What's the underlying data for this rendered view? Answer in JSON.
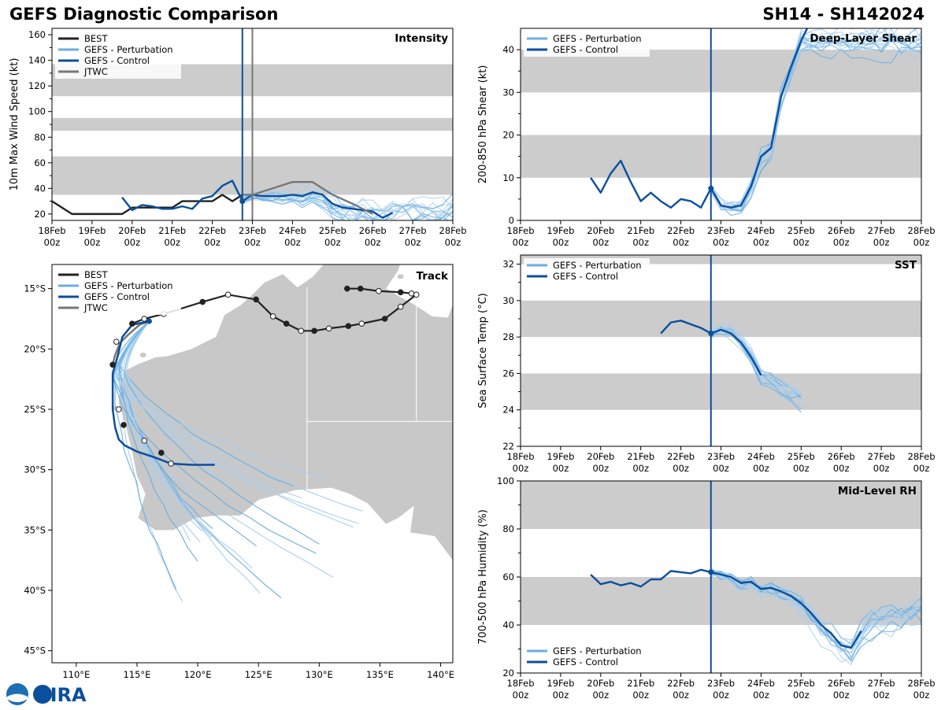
{
  "header": {
    "left": "GEFS Diagnostic Comparison",
    "right": "SH14 - SH142024"
  },
  "colors": {
    "best": "#222222",
    "perturbation": "#6aaedf",
    "perturbation_faint": "#a9cfee",
    "control": "#0b4f9c",
    "jtwc": "#777777",
    "band": "#cccccc",
    "land": "#c8c8c8"
  },
  "legend": {
    "best": "BEST",
    "perturbation": "GEFS - Perturbation",
    "control": "GEFS - Control",
    "jtwc": "JTWC"
  },
  "time_axis": {
    "days": [
      "18Feb",
      "19Feb",
      "20Feb",
      "21Feb",
      "22Feb",
      "23Feb",
      "24Feb",
      "25Feb",
      "26Feb",
      "27Feb",
      "28Feb"
    ],
    "hour": "00z",
    "start_day": 18,
    "end_day": 28
  },
  "init_time_day": 22.75,
  "jtwc_time_day": 23.0,
  "logo_text": "CIRA",
  "chart_data": [
    {
      "id": "intensity",
      "type": "line",
      "title": "Intensity",
      "ylabel": "10m Max Wind Speed (kt)",
      "ylim": [
        15,
        165
      ],
      "yticks": [
        20,
        40,
        60,
        80,
        100,
        120,
        140,
        160
      ],
      "bands": [
        [
          35,
          65
        ],
        [
          85,
          95
        ],
        [
          112,
          137
        ]
      ],
      "series": [
        {
          "name": "BEST",
          "x": [
            18,
            18.5,
            19,
            19.5,
            19.75,
            20,
            20.25,
            20.5,
            20.75,
            21,
            21.25,
            21.5,
            21.75,
            22,
            22.25,
            22.5,
            22.75
          ],
          "values": [
            30,
            20,
            20,
            20,
            20,
            25,
            25,
            25,
            25,
            25,
            30,
            30,
            30,
            30,
            35,
            30,
            35
          ]
        },
        {
          "name": "GEFS - Control",
          "x": [
            19.75,
            20,
            20.25,
            20.5,
            20.75,
            21,
            21.25,
            21.5,
            21.75,
            22,
            22.25,
            22.5,
            22.75,
            23,
            23.25,
            23.5,
            23.75,
            24,
            24.25,
            24.5,
            24.75,
            25,
            25.25,
            25.5,
            25.75,
            26,
            26.25,
            26.5
          ],
          "values": [
            33,
            23,
            27,
            26,
            24,
            24,
            26,
            24,
            32,
            34,
            42,
            46,
            30,
            35,
            34,
            34,
            34,
            35,
            34,
            37,
            35,
            28,
            25,
            24,
            23,
            22,
            17,
            21
          ]
        },
        {
          "name": "JTWC",
          "x": [
            22.75,
            23,
            23.5,
            24,
            24.5,
            25,
            25.5,
            26
          ],
          "values": [
            35,
            35,
            40,
            45,
            45,
            35,
            28,
            20
          ]
        }
      ]
    },
    {
      "id": "track",
      "type": "scatter",
      "title": "Track",
      "xlim": [
        108,
        141
      ],
      "ylim": [
        -46,
        -13
      ],
      "xticks": [
        110,
        115,
        120,
        125,
        130,
        135,
        140
      ],
      "xtick_labels": [
        "110°E",
        "115°E",
        "120°E",
        "125°E",
        "130°E",
        "135°E",
        "140°E"
      ],
      "yticks": [
        -15,
        -20,
        -25,
        -30,
        -35,
        -40,
        -45
      ],
      "ytick_labels": [
        "15°S",
        "20°S",
        "25°S",
        "30°S",
        "35°S",
        "40°S",
        "45°S"
      ],
      "best_track": {
        "lon": [
          132.3,
          133.4,
          134.9,
          136.7,
          137.6,
          138,
          136.7,
          135.4,
          133.5,
          132.4,
          130.8,
          129.6,
          128.5,
          127.3,
          126.2,
          124.8,
          122.5,
          120.4,
          117.2,
          115.6,
          114.6
        ],
        "lat": [
          -15,
          -15,
          -15.2,
          -15.3,
          -15.4,
          -15.5,
          -16.5,
          -17.5,
          -17.9,
          -18.1,
          -18.3,
          -18.5,
          -18.5,
          -17.9,
          -17.3,
          -15.9,
          -15.5,
          -16.1,
          -17.1,
          -17.5,
          -17.9
        ]
      },
      "best_track_filled": [
        true,
        true,
        false,
        true,
        false,
        false,
        false,
        true,
        false,
        true,
        false,
        true,
        false,
        true,
        false,
        true,
        false,
        true,
        false,
        false,
        true
      ],
      "control_track": {
        "lon": [
          116,
          114.6,
          113.8,
          113.3,
          113,
          113,
          113,
          113.2,
          113.5,
          114,
          115,
          116.5,
          117.8,
          119.5,
          121.4
        ],
        "lat": [
          -17.7,
          -18,
          -19,
          -21,
          -22,
          -23.4,
          -25,
          -26.5,
          -27.5,
          -28,
          -28.5,
          -29,
          -29.5,
          -29.6,
          -29.6
        ]
      },
      "control_track_points": {
        "lon": [
          113.3,
          113,
          113.5,
          113.9,
          115.6,
          117,
          117.8
        ],
        "lat": [
          -19.4,
          -21.3,
          -25,
          -26.3,
          -27.6,
          -28.6,
          -29.5
        ]
      },
      "jtwc_track": {
        "lon": [
          116,
          115.2,
          114.3,
          113.6,
          113.2,
          113
        ],
        "lat": [
          -17.7,
          -18,
          -18.8,
          -19.5,
          -20.5,
          -21.3
        ]
      }
    },
    {
      "id": "shear",
      "type": "line",
      "title": "Deep-Layer Shear",
      "ylabel": "200-850 hPa Shear (kt)",
      "ylim": [
        0,
        45
      ],
      "yticks": [
        0,
        10,
        20,
        30,
        40
      ],
      "bands": [
        [
          10,
          20
        ],
        [
          30,
          40
        ]
      ],
      "series": [
        {
          "name": "GEFS - Control",
          "x": [
            19.75,
            20,
            20.25,
            20.5,
            20.75,
            21,
            21.25,
            21.5,
            21.75,
            22,
            22.25,
            22.5,
            22.75,
            23,
            23.25,
            23.5,
            23.75,
            24,
            24.25,
            24.5,
            24.75,
            25,
            25.15
          ],
          "values": [
            10,
            6.5,
            11,
            14,
            9,
            4.5,
            6.5,
            4.5,
            3,
            5,
            4.5,
            3,
            7.5,
            3.5,
            3,
            3.5,
            8,
            15,
            17,
            29,
            36,
            42,
            45
          ]
        }
      ]
    },
    {
      "id": "sst",
      "type": "line",
      "title": "SST",
      "ylabel": "Sea Surface Temp (°C)",
      "ylim": [
        22,
        32.5
      ],
      "yticks": [
        22,
        24,
        26,
        28,
        30,
        32
      ],
      "bands": [
        [
          24,
          26
        ],
        [
          28,
          30
        ],
        [
          32,
          32.5
        ]
      ],
      "series": [
        {
          "name": "GEFS - Control",
          "x": [
            21.5,
            21.75,
            22,
            22.25,
            22.5,
            22.75,
            23,
            23.25,
            23.5,
            23.75,
            24
          ],
          "values": [
            28.2,
            28.8,
            28.9,
            28.7,
            28.5,
            28.2,
            28.4,
            28.2,
            27.7,
            26.9,
            25.9
          ]
        }
      ]
    },
    {
      "id": "rh",
      "type": "line",
      "title": "Mid-Level RH",
      "ylabel": "700-500 hPa Humidity (%)",
      "ylim": [
        20,
        100
      ],
      "yticks": [
        20,
        40,
        60,
        80,
        100
      ],
      "bands": [
        [
          40,
          60
        ],
        [
          80,
          100
        ]
      ],
      "series": [
        {
          "name": "GEFS - Control",
          "x": [
            19.75,
            20,
            20.25,
            20.5,
            20.75,
            21,
            21.25,
            21.5,
            21.75,
            22,
            22.25,
            22.5,
            22.75,
            23,
            23.25,
            23.5,
            23.75,
            24,
            24.25,
            24.5,
            24.75,
            25,
            25.25,
            25.5,
            25.75,
            26,
            26.25,
            26.5
          ],
          "values": [
            61,
            57,
            58,
            56.5,
            57.5,
            56,
            59,
            59,
            62.5,
            62,
            61.5,
            63,
            62,
            61,
            60,
            57.5,
            58,
            55,
            55.5,
            54,
            52,
            49,
            45,
            40,
            36.5,
            31.5,
            30.5,
            37.5
          ]
        }
      ]
    }
  ]
}
